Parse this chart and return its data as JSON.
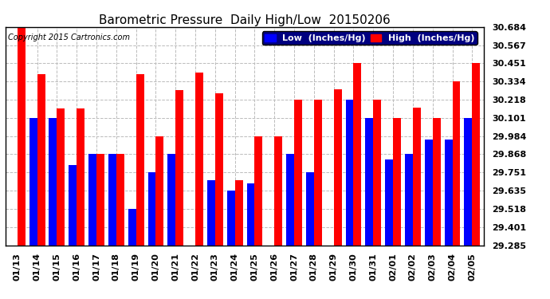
{
  "title": "Barometric Pressure  Daily High/Low  20150206",
  "copyright": "Copyright 2015 Cartronics.com",
  "legend_low": "Low  (Inches/Hg)",
  "legend_high": "High  (Inches/Hg)",
  "color_low": "#0000FF",
  "color_high": "#FF0000",
  "background_color": "#FFFFFF",
  "ylim": [
    29.285,
    30.684
  ],
  "yticks": [
    29.285,
    29.401,
    29.518,
    29.635,
    29.751,
    29.868,
    29.984,
    30.101,
    30.218,
    30.334,
    30.451,
    30.567,
    30.684
  ],
  "dates": [
    "01/13",
    "01/14",
    "01/15",
    "01/16",
    "01/17",
    "01/18",
    "01/19",
    "01/20",
    "01/21",
    "01/22",
    "01/23",
    "01/24",
    "01/25",
    "01/26",
    "01/27",
    "01/28",
    "01/29",
    "01/30",
    "01/31",
    "02/01",
    "02/02",
    "02/03",
    "02/04",
    "02/05"
  ],
  "low": [
    29.285,
    30.101,
    30.101,
    29.801,
    29.868,
    29.868,
    29.518,
    29.751,
    29.868,
    29.285,
    29.7,
    29.635,
    29.68,
    29.285,
    29.868,
    29.751,
    29.285,
    30.218,
    30.101,
    29.835,
    29.868,
    29.96,
    29.96,
    30.101
  ],
  "high": [
    30.684,
    30.38,
    30.16,
    30.16,
    29.868,
    29.868,
    30.38,
    29.984,
    30.28,
    30.39,
    30.26,
    29.7,
    29.984,
    29.984,
    30.218,
    30.218,
    30.285,
    30.451,
    30.218,
    30.101,
    30.168,
    30.101,
    30.334,
    30.451
  ],
  "grid_color": "#BBBBBB",
  "title_fontsize": 11,
  "axis_fontsize": 8,
  "copyright_fontsize": 7,
  "legend_fontsize": 8
}
